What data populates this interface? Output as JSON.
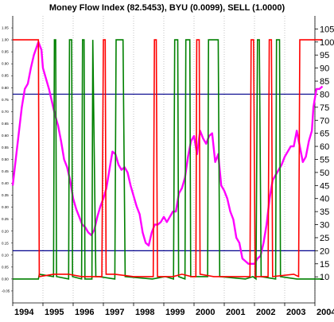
{
  "chart_data": {
    "type": "line",
    "title": "Money Flow Index (82.5453), BYU (0.0099), SELL (1.0000)",
    "colors": {
      "mfi": "#ff00ff",
      "buy": "#008000",
      "sell": "#ff0000",
      "reference_lines": "#00008b",
      "grid": "#b4b4b4"
    },
    "x_range": [
      1994.0,
      2004.0
    ],
    "x_tick_labels": [
      "1994",
      "1995",
      "1996",
      "1997",
      "1998",
      "1999",
      "2000",
      "2001",
      "2002",
      "2003",
      "2004"
    ],
    "right_axis": {
      "range": [
        0,
        110
      ],
      "ticks": [
        10,
        15,
        20,
        25,
        30,
        35,
        40,
        45,
        50,
        55,
        60,
        65,
        70,
        75,
        80,
        85,
        90,
        95,
        100,
        105
      ]
    },
    "left_axis": {
      "range": [
        -0.1,
        1.1
      ],
      "ticks": [
        "1.05",
        "1.00",
        "0.95",
        "0.90",
        "0.85",
        "0.80",
        "0.75",
        "0.70",
        "0.65",
        "0.60",
        "0.55",
        "0.50",
        "0.45",
        "0.40",
        "0.35",
        "0.30",
        "0.25",
        "0.20",
        "0.15",
        "0.10",
        "0.05",
        "0.00",
        "-0.05"
      ]
    },
    "reference_lines": [
      80,
      20
    ],
    "grid": "vertical dotted at year ticks",
    "series": [
      {
        "key": "mfi",
        "x": [
          1994.0,
          1994.1,
          1994.2,
          1994.3,
          1994.4,
          1994.5,
          1994.6,
          1994.7,
          1994.85,
          1994.95,
          1995.0,
          1995.1,
          1995.2,
          1995.3,
          1995.4,
          1995.5,
          1995.6,
          1995.7,
          1995.8,
          1995.9,
          1996.0,
          1996.1,
          1996.2,
          1996.3,
          1996.4,
          1996.5,
          1996.6,
          1996.7,
          1996.8,
          1996.9,
          1997.0,
          1997.1,
          1997.2,
          1997.3,
          1997.4,
          1997.5,
          1997.6,
          1997.7,
          1997.8,
          1997.9,
          1998.0,
          1998.1,
          1998.2,
          1998.3,
          1998.4,
          1998.5,
          1998.6,
          1998.7,
          1998.8,
          1998.9,
          1999.0,
          1999.1,
          1999.2,
          1999.3,
          1999.4,
          1999.5,
          1999.6,
          1999.7,
          1999.8,
          1999.9,
          2000.0,
          2000.1,
          2000.2,
          2000.3,
          2000.4,
          2000.5,
          2000.6,
          2000.7,
          2000.8,
          2000.9,
          2001.0,
          2001.1,
          2001.2,
          2001.3,
          2001.4,
          2001.5,
          2001.6,
          2001.7,
          2001.8,
          2001.9,
          2002.0,
          2002.1,
          2002.2,
          2002.3,
          2002.4,
          2002.5,
          2002.6,
          2002.7,
          2002.8,
          2002.9,
          2003.0,
          2003.1,
          2003.2,
          2003.3,
          2003.4,
          2003.5,
          2003.6,
          2003.7,
          2003.8,
          2003.9
        ],
        "y": [
          45,
          55,
          65,
          75,
          82,
          84,
          90,
          95,
          100,
          97,
          90,
          86,
          82,
          77,
          72,
          68,
          62,
          55,
          52,
          47,
          40,
          36,
          33,
          30,
          29,
          27,
          26,
          28,
          33,
          37,
          40,
          44,
          51,
          58,
          57,
          53,
          51,
          52,
          50,
          45,
          41,
          37,
          34,
          27,
          23,
          22,
          27,
          30,
          30,
          31,
          33,
          31,
          33,
          35,
          35,
          42,
          44,
          48,
          56,
          62,
          64,
          57,
          66,
          63,
          61,
          64,
          65,
          54,
          57,
          45,
          43,
          40,
          35,
          32,
          25,
          23,
          17,
          16,
          15,
          15,
          15,
          17,
          18,
          23,
          30,
          40,
          47,
          49,
          51,
          53,
          56,
          58,
          60,
          60,
          66,
          60,
          54,
          56,
          62,
          66
        ]
      },
      {
        "key": "mfi_tail",
        "x": [
          2003.9,
          2003.95,
          2004.05,
          2004.15,
          2004.25
        ],
        "y": [
          66,
          75,
          82,
          82,
          83
        ]
      },
      {
        "key": "buy",
        "segments": [
          [
            [
              1994.0,
              0.0
            ],
            [
              1994.85,
              0.0
            ],
            [
              1994.88,
              0.02
            ],
            [
              1995.35,
              0.01
            ],
            [
              1995.38,
              1.0
            ],
            [
              1995.42,
              1.0
            ],
            [
              1995.45,
              0.01
            ],
            [
              1995.85,
              0.0
            ],
            [
              1995.88,
              1.0
            ],
            [
              1995.95,
              1.0
            ],
            [
              1995.98,
              0.01
            ],
            [
              1996.28,
              0.0
            ],
            [
              1996.31,
              1.0
            ],
            [
              1996.36,
              1.0
            ],
            [
              1996.39,
              0.0
            ],
            [
              1996.62,
              0.0
            ],
            [
              1996.65,
              1.0
            ],
            [
              1996.75,
              0.01
            ],
            [
              1996.85,
              0.01
            ],
            [
              1997.38,
              0.0
            ],
            [
              1997.42,
              1.0
            ],
            [
              1997.65,
              1.0
            ],
            [
              1997.72,
              0.01
            ],
            [
              1998.62,
              0.0
            ],
            [
              1999.05,
              0.01
            ],
            [
              1999.32,
              0.0
            ],
            [
              1999.36,
              1.0
            ],
            [
              1999.46,
              1.0
            ],
            [
              1999.49,
              0.01
            ],
            [
              1999.7,
              0.0
            ],
            [
              1999.73,
              1.0
            ],
            [
              1999.86,
              1.0
            ],
            [
              1999.89,
              0.01
            ],
            [
              2000.2,
              0.01
            ],
            [
              2000.45,
              0.01
            ],
            [
              2000.48,
              1.0
            ],
            [
              2000.8,
              1.0
            ],
            [
              2000.85,
              0.01
            ],
            [
              2001.7,
              0.0
            ],
            [
              2001.95,
              0.01
            ],
            [
              2002.05,
              0.0
            ],
            [
              2002.1,
              1.0
            ],
            [
              2002.16,
              1.0
            ],
            [
              2002.22,
              0.01
            ],
            [
              2002.7,
              0.0
            ],
            [
              2002.73,
              1.0
            ],
            [
              2002.83,
              1.0
            ],
            [
              2002.86,
              0.01
            ],
            [
              2003.4,
              0.0
            ],
            [
              2003.8,
              0.0
            ],
            [
              2004.25,
              0.0
            ]
          ]
        ]
      },
      {
        "key": "sell",
        "segments": [
          [
            [
              1994.0,
              1.0
            ],
            [
              1994.85,
              1.0
            ],
            [
              1994.88,
              0.01
            ],
            [
              1995.35,
              0.02
            ],
            [
              1995.85,
              0.02
            ],
            [
              1996.28,
              0.01
            ],
            [
              1996.62,
              0.01
            ],
            [
              1996.95,
              0.01
            ],
            [
              1997.0,
              1.0
            ],
            [
              1997.06,
              1.0
            ],
            [
              1997.09,
              0.02
            ],
            [
              1997.38,
              0.02
            ],
            [
              1998.0,
              0.01
            ],
            [
              1998.65,
              0.01
            ],
            [
              1998.69,
              1.0
            ],
            [
              1998.75,
              1.0
            ],
            [
              1998.79,
              0.01
            ],
            [
              1999.3,
              0.01
            ],
            [
              1999.6,
              0.02
            ],
            [
              1999.92,
              0.01
            ],
            [
              2000.06,
              0.01
            ],
            [
              2000.09,
              1.0
            ],
            [
              2000.17,
              1.0
            ],
            [
              2000.2,
              0.02
            ],
            [
              2000.65,
              0.01
            ],
            [
              2001.6,
              0.01
            ],
            [
              2001.85,
              0.01
            ],
            [
              2001.89,
              1.0
            ],
            [
              2001.97,
              1.0
            ],
            [
              2002.02,
              0.01
            ],
            [
              2002.45,
              0.01
            ],
            [
              2002.49,
              1.0
            ],
            [
              2002.56,
              1.0
            ],
            [
              2002.6,
              0.01
            ],
            [
              2003.3,
              0.02
            ],
            [
              2003.46,
              0.01
            ],
            [
              2003.5,
              1.0
            ],
            [
              2004.25,
              1.0
            ]
          ]
        ]
      }
    ]
  }
}
